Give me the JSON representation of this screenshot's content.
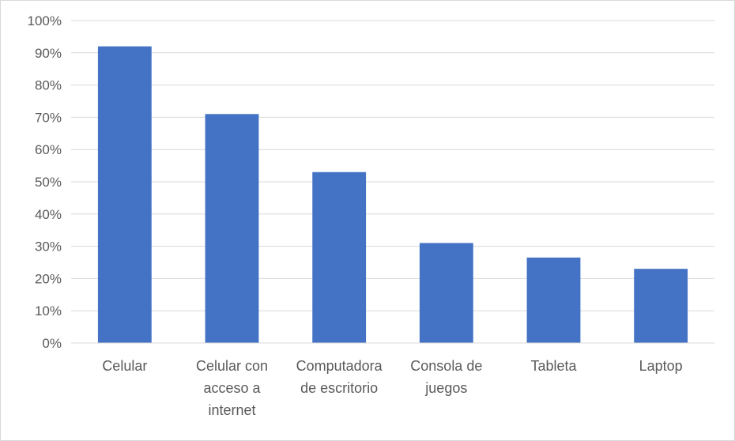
{
  "chart_data": {
    "type": "bar",
    "title": "",
    "xlabel": "",
    "ylabel": "",
    "categories": [
      [
        "Celular"
      ],
      [
        "Celular con",
        "acceso a",
        "internet"
      ],
      [
        "Computadora",
        "de escritorio"
      ],
      [
        "Consola de",
        "juegos"
      ],
      [
        "Tableta"
      ],
      [
        "Laptop"
      ]
    ],
    "values": [
      0.92,
      0.71,
      0.53,
      0.31,
      0.265,
      0.23
    ],
    "ylim": [
      0,
      1
    ],
    "yticks": [
      0,
      0.1,
      0.2,
      0.3,
      0.4,
      0.5,
      0.6,
      0.7,
      0.8,
      0.9,
      1.0
    ],
    "ytick_labels": [
      "0%",
      "10%",
      "20%",
      "30%",
      "40%",
      "50%",
      "60%",
      "70%",
      "80%",
      "90%",
      "100%"
    ],
    "grid": true,
    "legend": "none",
    "bar_color": "#4472c4",
    "grid_color": "#d9d9d9",
    "text_color": "#595959"
  }
}
